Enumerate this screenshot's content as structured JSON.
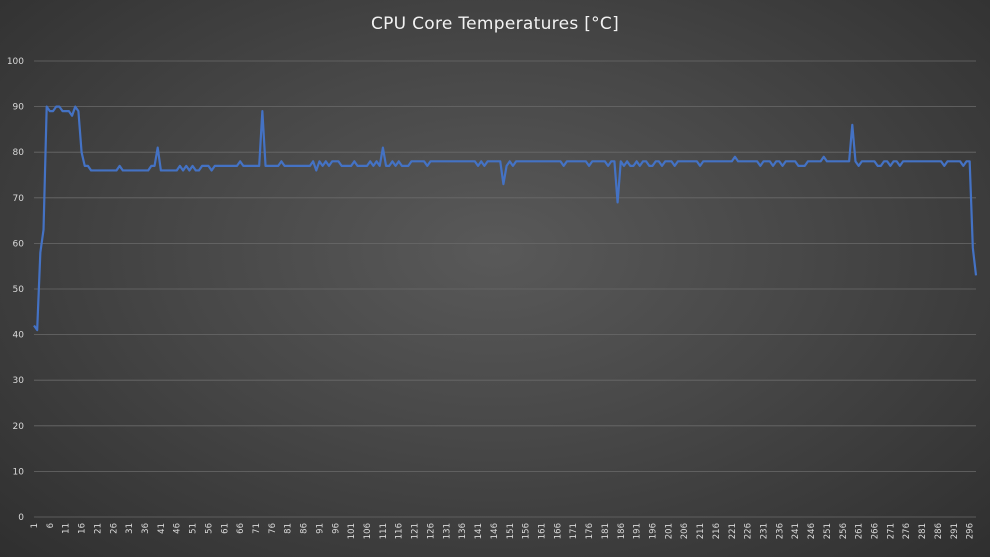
{
  "chart_data": {
    "type": "line",
    "title": "CPU Core Temperatures [°C]",
    "xlabel": "",
    "ylabel": "",
    "ylim": [
      0,
      100
    ],
    "yticks": [
      0,
      10,
      20,
      30,
      40,
      50,
      60,
      70,
      80,
      90,
      100
    ],
    "xlim": [
      1,
      297
    ],
    "xticks": [
      1,
      6,
      11,
      16,
      21,
      26,
      31,
      36,
      41,
      46,
      51,
      56,
      61,
      66,
      71,
      76,
      81,
      86,
      91,
      96,
      101,
      106,
      111,
      116,
      121,
      126,
      131,
      136,
      141,
      146,
      151,
      156,
      161,
      166,
      171,
      176,
      181,
      186,
      191,
      196,
      201,
      206,
      211,
      216,
      221,
      226,
      231,
      236,
      241,
      246,
      251,
      256,
      261,
      266,
      271,
      276,
      281,
      286,
      291,
      296
    ],
    "grid": true,
    "legend": "none",
    "colors": {
      "line": "#4472c4",
      "grid": "#6a6a6a",
      "text": "#d9d9d9"
    },
    "series": [
      {
        "points": [
          [
            1,
            42
          ],
          [
            2,
            41
          ],
          [
            3,
            58
          ],
          [
            4,
            63
          ],
          [
            5,
            90
          ],
          [
            6,
            89
          ],
          [
            7,
            89
          ],
          [
            8,
            90
          ],
          [
            9,
            90
          ],
          [
            10,
            89
          ],
          [
            11,
            89
          ],
          [
            12,
            89
          ],
          [
            13,
            88
          ],
          [
            14,
            90
          ],
          [
            15,
            89
          ],
          [
            16,
            80
          ],
          [
            17,
            77
          ],
          [
            18,
            77
          ],
          [
            19,
            76
          ],
          [
            20,
            76
          ],
          [
            21,
            76
          ],
          [
            22,
            76
          ],
          [
            23,
            76
          ],
          [
            24,
            76
          ],
          [
            25,
            76
          ],
          [
            26,
            76
          ],
          [
            27,
            76
          ],
          [
            28,
            77
          ],
          [
            29,
            76
          ],
          [
            30,
            76
          ],
          [
            31,
            76
          ],
          [
            32,
            76
          ],
          [
            33,
            76
          ],
          [
            34,
            76
          ],
          [
            35,
            76
          ],
          [
            36,
            76
          ],
          [
            37,
            76
          ],
          [
            38,
            77
          ],
          [
            39,
            77
          ],
          [
            40,
            81
          ],
          [
            41,
            76
          ],
          [
            42,
            76
          ],
          [
            43,
            76
          ],
          [
            44,
            76
          ],
          [
            45,
            76
          ],
          [
            46,
            76
          ],
          [
            47,
            77
          ],
          [
            48,
            76
          ],
          [
            49,
            77
          ],
          [
            50,
            76
          ],
          [
            51,
            77
          ],
          [
            52,
            76
          ],
          [
            53,
            76
          ],
          [
            54,
            77
          ],
          [
            55,
            77
          ],
          [
            56,
            77
          ],
          [
            57,
            76
          ],
          [
            58,
            77
          ],
          [
            59,
            77
          ],
          [
            60,
            77
          ],
          [
            61,
            77
          ],
          [
            62,
            77
          ],
          [
            63,
            77
          ],
          [
            64,
            77
          ],
          [
            65,
            77
          ],
          [
            66,
            78
          ],
          [
            67,
            77
          ],
          [
            68,
            77
          ],
          [
            69,
            77
          ],
          [
            70,
            77
          ],
          [
            71,
            77
          ],
          [
            72,
            77
          ],
          [
            73,
            89
          ],
          [
            74,
            77
          ],
          [
            75,
            77
          ],
          [
            76,
            77
          ],
          [
            77,
            77
          ],
          [
            78,
            77
          ],
          [
            79,
            78
          ],
          [
            80,
            77
          ],
          [
            81,
            77
          ],
          [
            82,
            77
          ],
          [
            83,
            77
          ],
          [
            84,
            77
          ],
          [
            85,
            77
          ],
          [
            86,
            77
          ],
          [
            87,
            77
          ],
          [
            88,
            77
          ],
          [
            89,
            78
          ],
          [
            90,
            76
          ],
          [
            91,
            78
          ],
          [
            92,
            77
          ],
          [
            93,
            78
          ],
          [
            94,
            77
          ],
          [
            95,
            78
          ],
          [
            96,
            78
          ],
          [
            97,
            78
          ],
          [
            98,
            77
          ],
          [
            99,
            77
          ],
          [
            100,
            77
          ],
          [
            101,
            77
          ],
          [
            102,
            78
          ],
          [
            103,
            77
          ],
          [
            104,
            77
          ],
          [
            105,
            77
          ],
          [
            106,
            77
          ],
          [
            107,
            78
          ],
          [
            108,
            77
          ],
          [
            109,
            78
          ],
          [
            110,
            77
          ],
          [
            111,
            81
          ],
          [
            112,
            77
          ],
          [
            113,
            77
          ],
          [
            114,
            78
          ],
          [
            115,
            77
          ],
          [
            116,
            78
          ],
          [
            117,
            77
          ],
          [
            118,
            77
          ],
          [
            119,
            77
          ],
          [
            120,
            78
          ],
          [
            121,
            78
          ],
          [
            122,
            78
          ],
          [
            123,
            78
          ],
          [
            124,
            78
          ],
          [
            125,
            77
          ],
          [
            126,
            78
          ],
          [
            127,
            78
          ],
          [
            128,
            78
          ],
          [
            129,
            78
          ],
          [
            130,
            78
          ],
          [
            131,
            78
          ],
          [
            132,
            78
          ],
          [
            133,
            78
          ],
          [
            134,
            78
          ],
          [
            135,
            78
          ],
          [
            136,
            78
          ],
          [
            137,
            78
          ],
          [
            138,
            78
          ],
          [
            139,
            78
          ],
          [
            140,
            78
          ],
          [
            141,
            77
          ],
          [
            142,
            78
          ],
          [
            143,
            77
          ],
          [
            144,
            78
          ],
          [
            145,
            78
          ],
          [
            146,
            78
          ],
          [
            147,
            78
          ],
          [
            148,
            78
          ],
          [
            149,
            73
          ],
          [
            150,
            77
          ],
          [
            151,
            78
          ],
          [
            152,
            77
          ],
          [
            153,
            78
          ],
          [
            154,
            78
          ],
          [
            155,
            78
          ],
          [
            156,
            78
          ],
          [
            157,
            78
          ],
          [
            158,
            78
          ],
          [
            159,
            78
          ],
          [
            160,
            78
          ],
          [
            161,
            78
          ],
          [
            162,
            78
          ],
          [
            163,
            78
          ],
          [
            164,
            78
          ],
          [
            165,
            78
          ],
          [
            166,
            78
          ],
          [
            167,
            78
          ],
          [
            168,
            77
          ],
          [
            169,
            78
          ],
          [
            170,
            78
          ],
          [
            171,
            78
          ],
          [
            172,
            78
          ],
          [
            173,
            78
          ],
          [
            174,
            78
          ],
          [
            175,
            78
          ],
          [
            176,
            77
          ],
          [
            177,
            78
          ],
          [
            178,
            78
          ],
          [
            179,
            78
          ],
          [
            180,
            78
          ],
          [
            181,
            78
          ],
          [
            182,
            77
          ],
          [
            183,
            78
          ],
          [
            184,
            78
          ],
          [
            185,
            69
          ],
          [
            186,
            78
          ],
          [
            187,
            77
          ],
          [
            188,
            78
          ],
          [
            189,
            77
          ],
          [
            190,
            77
          ],
          [
            191,
            78
          ],
          [
            192,
            77
          ],
          [
            193,
            78
          ],
          [
            194,
            78
          ],
          [
            195,
            77
          ],
          [
            196,
            77
          ],
          [
            197,
            78
          ],
          [
            198,
            78
          ],
          [
            199,
            77
          ],
          [
            200,
            78
          ],
          [
            201,
            78
          ],
          [
            202,
            78
          ],
          [
            203,
            77
          ],
          [
            204,
            78
          ],
          [
            205,
            78
          ],
          [
            206,
            78
          ],
          [
            207,
            78
          ],
          [
            208,
            78
          ],
          [
            209,
            78
          ],
          [
            210,
            78
          ],
          [
            211,
            77
          ],
          [
            212,
            78
          ],
          [
            213,
            78
          ],
          [
            214,
            78
          ],
          [
            215,
            78
          ],
          [
            216,
            78
          ],
          [
            217,
            78
          ],
          [
            218,
            78
          ],
          [
            219,
            78
          ],
          [
            220,
            78
          ],
          [
            221,
            78
          ],
          [
            222,
            79
          ],
          [
            223,
            78
          ],
          [
            224,
            78
          ],
          [
            225,
            78
          ],
          [
            226,
            78
          ],
          [
            227,
            78
          ],
          [
            228,
            78
          ],
          [
            229,
            78
          ],
          [
            230,
            77
          ],
          [
            231,
            78
          ],
          [
            232,
            78
          ],
          [
            233,
            78
          ],
          [
            234,
            77
          ],
          [
            235,
            78
          ],
          [
            236,
            78
          ],
          [
            237,
            77
          ],
          [
            238,
            78
          ],
          [
            239,
            78
          ],
          [
            240,
            78
          ],
          [
            241,
            78
          ],
          [
            242,
            77
          ],
          [
            243,
            77
          ],
          [
            244,
            77
          ],
          [
            245,
            78
          ],
          [
            246,
            78
          ],
          [
            247,
            78
          ],
          [
            248,
            78
          ],
          [
            249,
            78
          ],
          [
            250,
            79
          ],
          [
            251,
            78
          ],
          [
            252,
            78
          ],
          [
            253,
            78
          ],
          [
            254,
            78
          ],
          [
            255,
            78
          ],
          [
            256,
            78
          ],
          [
            257,
            78
          ],
          [
            258,
            78
          ],
          [
            259,
            86
          ],
          [
            260,
            78
          ],
          [
            261,
            77
          ],
          [
            262,
            78
          ],
          [
            263,
            78
          ],
          [
            264,
            78
          ],
          [
            265,
            78
          ],
          [
            266,
            78
          ],
          [
            267,
            77
          ],
          [
            268,
            77
          ],
          [
            269,
            78
          ],
          [
            270,
            78
          ],
          [
            271,
            77
          ],
          [
            272,
            78
          ],
          [
            273,
            78
          ],
          [
            274,
            77
          ],
          [
            275,
            78
          ],
          [
            276,
            78
          ],
          [
            277,
            78
          ],
          [
            278,
            78
          ],
          [
            279,
            78
          ],
          [
            280,
            78
          ],
          [
            281,
            78
          ],
          [
            282,
            78
          ],
          [
            283,
            78
          ],
          [
            284,
            78
          ],
          [
            285,
            78
          ],
          [
            286,
            78
          ],
          [
            287,
            78
          ],
          [
            288,
            77
          ],
          [
            289,
            78
          ],
          [
            290,
            78
          ],
          [
            291,
            78
          ],
          [
            292,
            78
          ],
          [
            293,
            78
          ],
          [
            294,
            77
          ],
          [
            295,
            78
          ],
          [
            296,
            78
          ],
          [
            297,
            59
          ],
          [
            298,
            53
          ]
        ]
      }
    ]
  }
}
